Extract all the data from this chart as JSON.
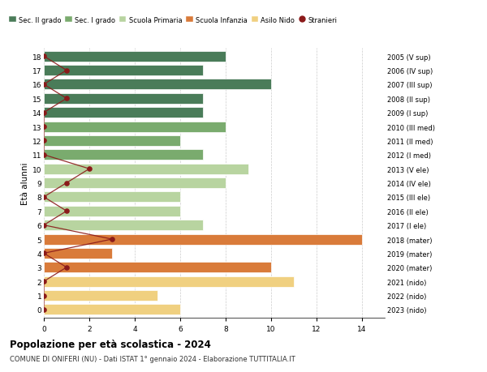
{
  "ages": [
    18,
    17,
    16,
    15,
    14,
    13,
    12,
    11,
    10,
    9,
    8,
    7,
    6,
    5,
    4,
    3,
    2,
    1,
    0
  ],
  "years": [
    "2005 (V sup)",
    "2006 (IV sup)",
    "2007 (III sup)",
    "2008 (II sup)",
    "2009 (I sup)",
    "2010 (III med)",
    "2011 (II med)",
    "2012 (I med)",
    "2013 (V ele)",
    "2014 (IV ele)",
    "2015 (III ele)",
    "2016 (II ele)",
    "2017 (I ele)",
    "2018 (mater)",
    "2019 (mater)",
    "2020 (mater)",
    "2021 (nido)",
    "2022 (nido)",
    "2023 (nido)"
  ],
  "bar_values": [
    8,
    7,
    10,
    7,
    7,
    8,
    6,
    7,
    9,
    8,
    6,
    6,
    7,
    14,
    3,
    10,
    11,
    5,
    6
  ],
  "bar_colors": [
    "#4a7c59",
    "#4a7c59",
    "#4a7c59",
    "#4a7c59",
    "#4a7c59",
    "#7aab6e",
    "#7aab6e",
    "#7aab6e",
    "#b8d4a0",
    "#b8d4a0",
    "#b8d4a0",
    "#b8d4a0",
    "#b8d4a0",
    "#d97b3a",
    "#d97b3a",
    "#d97b3a",
    "#f0d080",
    "#f0d080",
    "#f0d080"
  ],
  "stranieri_values": [
    0,
    1,
    0,
    1,
    0,
    0,
    0,
    0,
    2,
    1,
    0,
    1,
    0,
    3,
    0,
    1,
    0,
    0,
    0
  ],
  "stranieri_color": "#8b1a1a",
  "legend_labels": [
    "Sec. II grado",
    "Sec. I grado",
    "Scuola Primaria",
    "Scuola Infanzia",
    "Asilo Nido",
    "Stranieri"
  ],
  "legend_colors": [
    "#4a7c59",
    "#7aab6e",
    "#b8d4a0",
    "#d97b3a",
    "#f0d080",
    "#8b1a1a"
  ],
  "title": "Popolazione per età scolastica - 2024",
  "subtitle": "COMUNE DI ONIFERI (NU) - Dati ISTAT 1° gennaio 2024 - Elaborazione TUTTITALIA.IT",
  "ylabel_left": "Età alunni",
  "xlim": [
    0,
    15
  ],
  "background_color": "#ffffff",
  "grid_color": "#cccccc",
  "bar_height": 0.75
}
